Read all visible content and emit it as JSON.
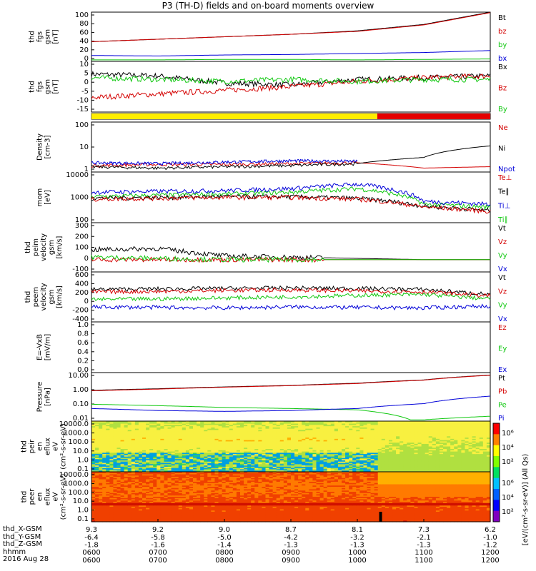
{
  "title": "P3 (TH-D) fields and on-board moments overview",
  "date_label": "2016 Aug 28",
  "ephemeris": {
    "rows": [
      {
        "label": "thd_X-GSM",
        "values": [
          "-6.4",
          "-5.8",
          "-5.0",
          "-4.2",
          "-3.2",
          "-2.1",
          "-1.0"
        ]
      },
      {
        "label": "thd_Y-GSM",
        "values": [
          "-1.8",
          "-1.6",
          "-1.4",
          "-1.3",
          "-1.3",
          "-1.3",
          "-1.2"
        ]
      },
      {
        "label": "thd_Z-GSM",
        "values": [
          "0600",
          "0700",
          "0800",
          "0900",
          "1000",
          "1100",
          "1200"
        ]
      }
    ],
    "top_ticks": [
      "9.3",
      "9.2",
      "9.0",
      "8.7",
      "8.1",
      "7.3",
      "6.2"
    ],
    "time_label": "hhmm",
    "time_values": [
      "0600",
      "0700",
      "0800",
      "0900",
      "1000",
      "1100",
      "1200"
    ]
  },
  "colorbar_label": "[eV/(cm²-s-sr-eV)] (All Qs)",
  "colorbar_ticks": [
    "10⁶",
    "10⁴",
    "10²"
  ],
  "colors": {
    "black": "#000000",
    "red": "#d40000",
    "green": "#10c810",
    "blue": "#0000d8"
  },
  "chart_data": [
    {
      "type": "line",
      "ylabel": [
        "thd",
        "fgs",
        "gsm",
        "[nT]"
      ],
      "ylim": [
        0,
        100
      ],
      "yticks": [
        "100",
        "80",
        "60",
        "40",
        "20",
        "0"
      ],
      "legend": [
        "Bt",
        "bz",
        "by",
        "bx"
      ],
      "series": [
        {
          "name": "Bt",
          "color": "black",
          "x": [
            6,
            7,
            8,
            9,
            10,
            11,
            12
          ],
          "y": [
            40,
            45,
            50,
            55,
            62,
            75,
            100
          ]
        },
        {
          "name": "bz",
          "color": "red",
          "x": [
            6,
            7,
            8,
            9,
            10,
            11,
            12
          ],
          "y": [
            40,
            45,
            50,
            55,
            61,
            74,
            99
          ]
        },
        {
          "name": "by",
          "color": "green",
          "x": [
            6,
            7,
            8,
            9,
            10,
            11,
            12
          ],
          "y": [
            3,
            3,
            4,
            4,
            3,
            4,
            5
          ]
        },
        {
          "name": "bx",
          "color": "blue",
          "x": [
            6,
            7,
            8,
            9,
            10,
            11,
            12
          ],
          "y": [
            12,
            11,
            13,
            14,
            16,
            18,
            22
          ]
        }
      ]
    },
    {
      "type": "line",
      "ylabel": [
        "thd",
        "fgs",
        "gsm",
        "[nT]"
      ],
      "ylim": [
        -18,
        10
      ],
      "yticks": [
        "10",
        "5",
        "0",
        "-5",
        "-10",
        "-15"
      ],
      "legend": [
        "Bx",
        "Bz",
        "By"
      ],
      "series": [
        {
          "name": "Bx",
          "color": "black",
          "x": [
            6,
            7,
            8,
            9,
            10,
            11,
            12
          ],
          "y": [
            3,
            2,
            -2,
            -3,
            0,
            1,
            2
          ]
        },
        {
          "name": "Bz",
          "color": "red",
          "x": [
            6,
            7,
            8,
            9,
            10,
            11,
            12
          ],
          "y": [
            -10,
            -8,
            -6,
            -4,
            -1,
            1,
            2
          ]
        },
        {
          "name": "By",
          "color": "green",
          "x": [
            6,
            7,
            8,
            9,
            10,
            11,
            12
          ],
          "y": [
            1,
            0,
            -1,
            0,
            -1,
            0,
            0
          ]
        }
      ]
    },
    {
      "type": "heatmap",
      "label": "mode bar",
      "segments": [
        {
          "x": [
            6,
            10.3
          ],
          "color": "#ffee00"
        },
        {
          "x": [
            10.3,
            12
          ],
          "color": "#e40000"
        }
      ]
    },
    {
      "type": "line",
      "ylabel": [
        "Density",
        "[cm-3]"
      ],
      "yscale": "log",
      "ylim": [
        0.3,
        200
      ],
      "yticks": [
        "100",
        "10",
        "1"
      ],
      "legend": [
        "Ne",
        "Ni",
        "Npot"
      ],
      "series": [
        {
          "name": "Ne",
          "color": "red",
          "x": [
            6,
            7,
            8,
            9,
            10,
            11,
            12
          ],
          "y": [
            0.7,
            0.8,
            0.8,
            0.9,
            1.0,
            0.5,
            0.6
          ]
        },
        {
          "name": "Ni",
          "color": "black",
          "x": [
            6,
            7,
            8,
            9,
            10,
            11,
            12
          ],
          "y": [
            0.6,
            0.5,
            0.6,
            0.7,
            0.9,
            2,
            9
          ]
        },
        {
          "name": "Npot",
          "color": "blue",
          "x": [
            6,
            7,
            8,
            9,
            10
          ],
          "y": [
            1.0,
            0.9,
            1.1,
            1.3,
            1.2
          ]
        }
      ]
    },
    {
      "type": "line",
      "ylabel": [
        "mom",
        "[eV]"
      ],
      "yscale": "log",
      "ylim": [
        30,
        10000
      ],
      "yticks": [
        "10000",
        "1000",
        "100"
      ],
      "legend": [
        "Te⊥",
        "Te∥",
        "Ti⊥",
        "Ti∥"
      ],
      "series": [
        {
          "name": "Ti∥",
          "color": "green",
          "x": [
            6,
            7,
            8,
            9,
            10,
            11,
            12
          ],
          "y": [
            600,
            700,
            800,
            1000,
            1500,
            250,
            180
          ]
        },
        {
          "name": "Ti⊥",
          "color": "blue",
          "x": [
            6,
            7,
            8,
            9,
            10,
            11,
            12
          ],
          "y": [
            1000,
            1100,
            1200,
            1500,
            2500,
            350,
            250
          ]
        },
        {
          "name": "Te∥",
          "color": "black",
          "x": [
            6,
            7,
            8,
            9,
            10,
            11,
            12
          ],
          "y": [
            500,
            550,
            600,
            600,
            500,
            200,
            120
          ]
        },
        {
          "name": "Te⊥",
          "color": "red",
          "x": [
            6,
            7,
            8,
            9,
            10,
            11,
            12
          ],
          "y": [
            450,
            500,
            550,
            550,
            450,
            180,
            110
          ]
        }
      ]
    },
    {
      "type": "line",
      "ylabel": [
        "thd",
        "peim",
        "velocity",
        "gsm",
        "[km/s]"
      ],
      "ylim": [
        -100,
        300
      ],
      "yticks": [
        "300",
        "200",
        "100",
        "0",
        "-100"
      ],
      "legend": [
        "Vt",
        "Vz",
        "Vy",
        "Vx"
      ],
      "series": [
        {
          "name": "Vt",
          "color": "black",
          "x": [
            6,
            7,
            8,
            9,
            10,
            11,
            12
          ],
          "y": [
            80,
            90,
            30,
            20,
            10,
            0,
            0
          ]
        },
        {
          "name": "Vz",
          "color": "red",
          "x": [
            6,
            7,
            8,
            9,
            10,
            11,
            12
          ],
          "y": [
            0,
            0,
            0,
            0,
            0,
            0,
            0
          ]
        },
        {
          "name": "Vy",
          "color": "green",
          "x": [
            6,
            7,
            8,
            9,
            10,
            11,
            12
          ],
          "y": [
            20,
            10,
            0,
            0,
            0,
            0,
            0
          ]
        }
      ]
    },
    {
      "type": "line",
      "ylabel": [
        "thd",
        "peem",
        "velocity",
        "gsm",
        "[km/s]"
      ],
      "ylim": [
        -400,
        600
      ],
      "yticks": [
        "600",
        "400",
        "200",
        "0",
        "-200",
        "-400"
      ],
      "legend": [
        "Vt",
        "Vz",
        "Vy",
        "Vx"
      ],
      "series": [
        {
          "name": "Vt",
          "color": "black",
          "x": [
            6,
            7,
            8,
            9,
            10,
            11,
            12
          ],
          "y": [
            250,
            260,
            270,
            280,
            270,
            250,
            150
          ]
        },
        {
          "name": "Vz",
          "color": "red",
          "x": [
            6,
            7,
            8,
            9,
            10,
            11,
            12
          ],
          "y": [
            200,
            210,
            230,
            240,
            220,
            200,
            120
          ]
        },
        {
          "name": "Vy",
          "color": "green",
          "x": [
            6,
            7,
            8,
            9,
            10,
            11,
            12
          ],
          "y": [
            50,
            60,
            80,
            100,
            130,
            150,
            60
          ]
        },
        {
          "name": "Vx",
          "color": "blue",
          "x": [
            6,
            7,
            8,
            9,
            10,
            11,
            12
          ],
          "y": [
            -100,
            -110,
            -120,
            -100,
            -110,
            -120,
            -80
          ]
        }
      ]
    },
    {
      "type": "line",
      "ylabel": [
        "E=-VxB",
        "[mV/m]"
      ],
      "ylim": [
        0,
        1
      ],
      "yticks": [
        "1.0",
        "0.8",
        "0.6",
        "0.4",
        "0.2",
        "0.0"
      ],
      "legend": [
        "Ez",
        "Ey",
        "Ex"
      ],
      "series": []
    },
    {
      "type": "line",
      "ylabel": [
        "Pressure",
        "[nPa]"
      ],
      "yscale": "log",
      "ylim": [
        0.01,
        10
      ],
      "yticks": [
        "10.00",
        "1.00",
        "0.10",
        "0.01"
      ],
      "legend": [
        "Pt",
        "Pb",
        "Pe",
        "Pi"
      ],
      "series": [
        {
          "name": "Pt",
          "color": "black",
          "x": [
            6,
            7,
            8,
            9,
            10,
            11,
            12
          ],
          "y": [
            0.8,
            1.0,
            1.3,
            1.6,
            2.2,
            3.5,
            7
          ]
        },
        {
          "name": "Pb",
          "color": "red",
          "x": [
            6,
            7,
            8,
            9,
            10,
            11,
            12
          ],
          "y": [
            0.75,
            0.95,
            1.25,
            1.55,
            2.1,
            3.4,
            6.8
          ]
        },
        {
          "name": "Pe",
          "color": "green",
          "x": [
            6,
            7,
            8,
            9,
            10,
            10.8,
            11,
            12
          ],
          "y": [
            0.11,
            0.09,
            0.07,
            0.06,
            0.05,
            0.012,
            0.012,
            0.02
          ]
        },
        {
          "name": "Pi",
          "color": "blue",
          "x": [
            6,
            7,
            8,
            9,
            10,
            11,
            12
          ],
          "y": [
            0.06,
            0.045,
            0.04,
            0.045,
            0.06,
            0.12,
            0.35
          ]
        }
      ]
    },
    {
      "type": "heatmap",
      "ylabel": [
        "thd",
        "peir",
        "en",
        "eflux",
        "eV",
        "(cm²-s-sr-eV)"
      ],
      "yscale": "log",
      "ylim": [
        0.1,
        10000
      ],
      "yticks": [
        "10000.0",
        "1000.0",
        "100.0",
        "10.0",
        "1.0",
        "0.1"
      ]
    },
    {
      "type": "heatmap",
      "ylabel": [
        "thd",
        "peer",
        "en",
        "eflux",
        "eV",
        "(cm²-s-sr-eV)"
      ],
      "yscale": "log",
      "ylim": [
        0.1,
        10000
      ],
      "yticks": [
        "10000.0",
        "1000.0",
        "100.0",
        "10.0",
        "1.0",
        "0.1"
      ]
    }
  ]
}
